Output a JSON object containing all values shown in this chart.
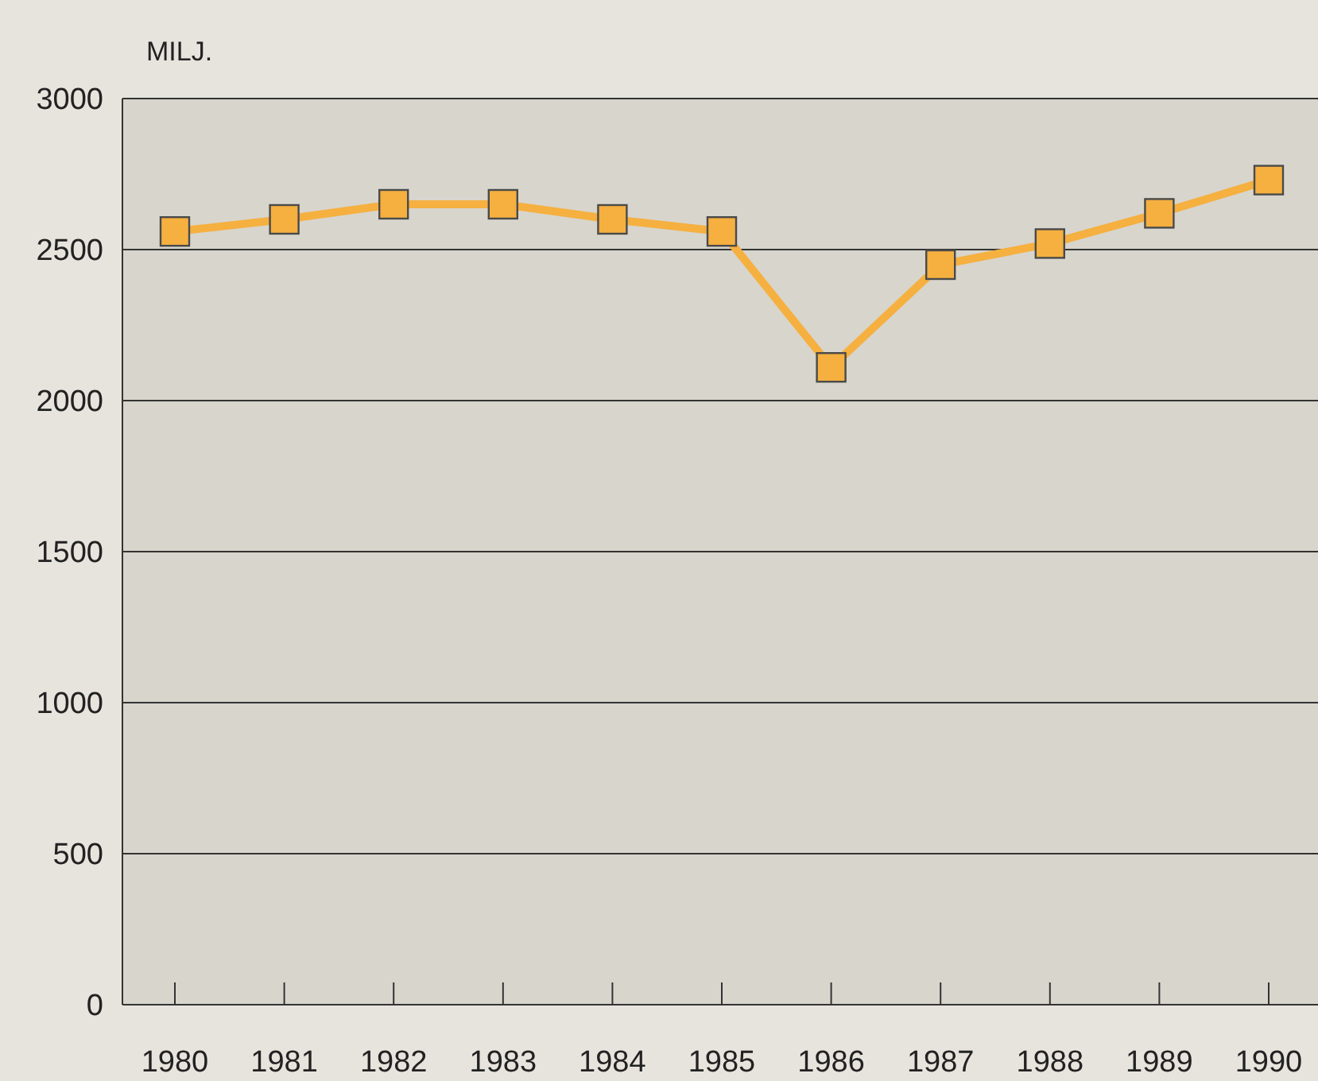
{
  "chart_data": {
    "type": "line",
    "ylabel": "MILJ.",
    "categories": [
      "1980",
      "1981",
      "1982",
      "1983",
      "1984",
      "1985",
      "1986",
      "1987",
      "1988",
      "1989",
      "1990"
    ],
    "series": [
      {
        "color": "#f5b040",
        "values": [
          2560,
          2600,
          2650,
          2650,
          2600,
          2560,
          2110,
          2450,
          2520,
          2620,
          2730
        ]
      }
    ],
    "ylim": [
      0,
      3000
    ],
    "yticks": [
      0,
      500,
      1000,
      1500,
      2000,
      2500,
      3000
    ],
    "grid": "y",
    "marker": "square",
    "line_style": "solid"
  }
}
